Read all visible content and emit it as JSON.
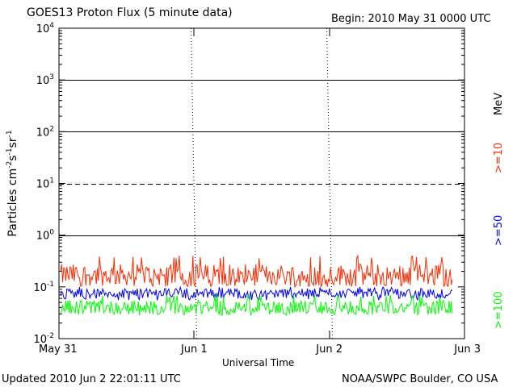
{
  "title": "GOES13 Proton Flux (5 minute data)",
  "begin": "Begin: 2010 May 31 0000 UTC",
  "updated": "Updated 2010 Jun  2 22:01:11 UTC",
  "source": "NOAA/SWPC Boulder, CO USA",
  "colors": {
    "gte10": "#ff2a00",
    "gte50": "#0000ff",
    "gte100": "#00ff00",
    "axis": "#000000"
  },
  "chart_data": {
    "type": "line",
    "title": "GOES13 Proton Flux (5 minute data)",
    "xlabel": "Universal Time",
    "ylabel": "Particles cm-2s-1sr-1",
    "yscale": "log",
    "ylim": [
      0.01,
      10000
    ],
    "y_ticks": [
      {
        "value": 0.01,
        "base": "10",
        "exp": "-2"
      },
      {
        "value": 0.1,
        "base": "10",
        "exp": "-1"
      },
      {
        "value": 1,
        "base": "10",
        "exp": "0"
      },
      {
        "value": 10,
        "base": "10",
        "exp": "1"
      },
      {
        "value": 100,
        "base": "10",
        "exp": "2"
      },
      {
        "value": 1000,
        "base": "10",
        "exp": "3"
      },
      {
        "value": 10000,
        "base": "10",
        "exp": "4"
      }
    ],
    "xlim": [
      "2010-05-31 00:00",
      "2010-06-03 00:00"
    ],
    "x_ticks": [
      {
        "label": "May 31",
        "value": "2010-05-31 00:00"
      },
      {
        "label": "Jun 1",
        "value": "2010-06-01 00:00"
      },
      {
        "label": "Jun 2",
        "value": "2010-06-02 00:00"
      },
      {
        "label": "Jun 3",
        "value": "2010-06-03 00:00"
      }
    ],
    "threshold_lines": [
      {
        "value": 1,
        "style": "solid"
      },
      {
        "value": 10,
        "style": "dashed"
      },
      {
        "value": 100,
        "style": "solid"
      },
      {
        "value": 1000,
        "style": "solid"
      }
    ],
    "legend_unit": "MeV",
    "series": [
      {
        "name": ">=10",
        "color": "#ff2a00",
        "typical": 0.17,
        "range": [
          0.1,
          0.4
        ]
      },
      {
        "name": ">=50",
        "color": "#0000ff",
        "typical": 0.075,
        "range": [
          0.055,
          0.1
        ]
      },
      {
        "name": ">=100",
        "color": "#00ff00",
        "typical": 0.04,
        "range": [
          0.028,
          0.07
        ]
      }
    ],
    "data_end": "2010-06-02 22:00",
    "grid": false
  }
}
